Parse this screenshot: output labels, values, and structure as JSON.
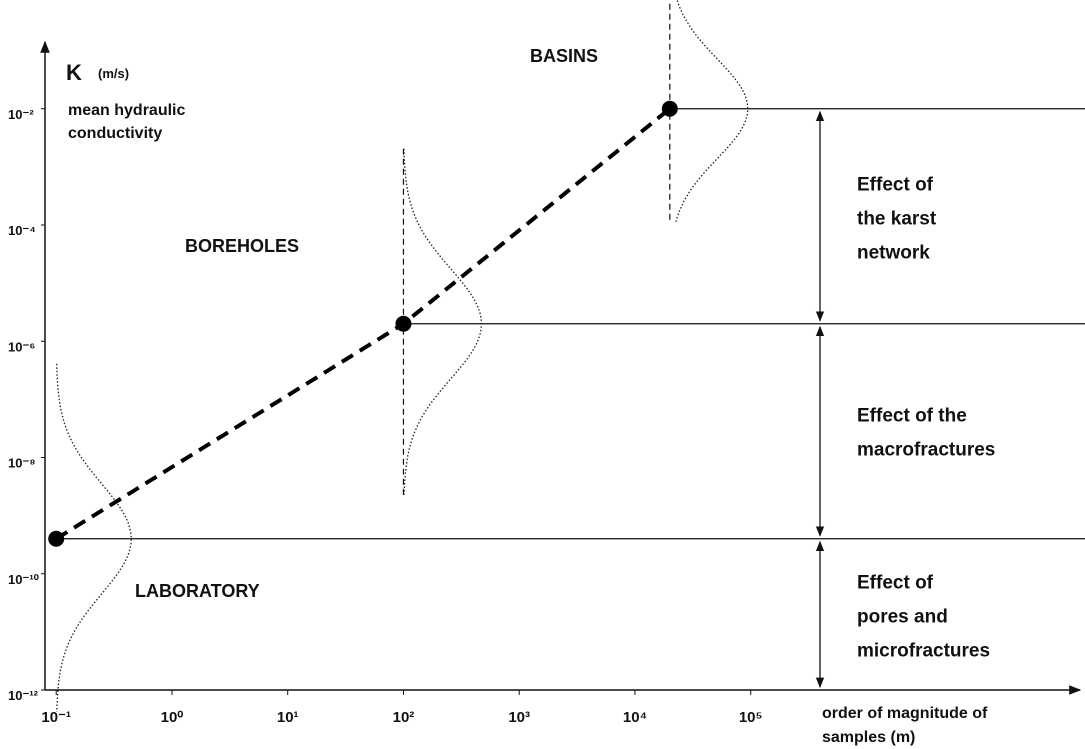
{
  "chart_data": {
    "type": "line",
    "y_axis_symbol": "K",
    "y_axis_unit": "(m/s)",
    "y_axis_label": [
      "mean hydraulic",
      "conductivity"
    ],
    "x_axis_label": [
      "order of magnitude of",
      "samples (m)"
    ],
    "x_scale": "log",
    "y_scale": "log",
    "xlim": [
      0.08,
      70000000
    ],
    "ylim": [
      1e-12,
      0.125
    ],
    "xticks": [
      {
        "value": 0.1,
        "label": "10⁻¹"
      },
      {
        "value": 1,
        "label": "10⁰"
      },
      {
        "value": 10,
        "label": "10¹"
      },
      {
        "value": 100,
        "label": "10²"
      },
      {
        "value": 1000,
        "label": "10³"
      },
      {
        "value": 10000,
        "label": "10⁴"
      },
      {
        "value": 100000,
        "label": "10⁵"
      }
    ],
    "yticks": [
      {
        "value": 0.01,
        "label": "10⁻²"
      },
      {
        "value": 0.0001,
        "label": "10⁻⁴"
      },
      {
        "value": 1e-06,
        "label": "10⁻⁶"
      },
      {
        "value": 1e-08,
        "label": "10⁻⁸"
      },
      {
        "value": 1e-10,
        "label": "10⁻¹⁰"
      },
      {
        "value": 1e-12,
        "label": "10⁻¹²"
      }
    ],
    "series": [
      {
        "color": "#000000",
        "x": [
          0.1,
          100,
          20000
        ],
        "values": [
          4e-10,
          2e-06,
          0.01
        ],
        "point_labels": [
          "LABORATORY",
          "BOREHOLES",
          "BASINS"
        ]
      }
    ],
    "effects": [
      [
        "Effect of",
        "pores and",
        "microfractures"
      ],
      [
        "Effect of the",
        "macrofractures"
      ],
      [
        "Effect of",
        "the karst",
        "network"
      ]
    ]
  }
}
